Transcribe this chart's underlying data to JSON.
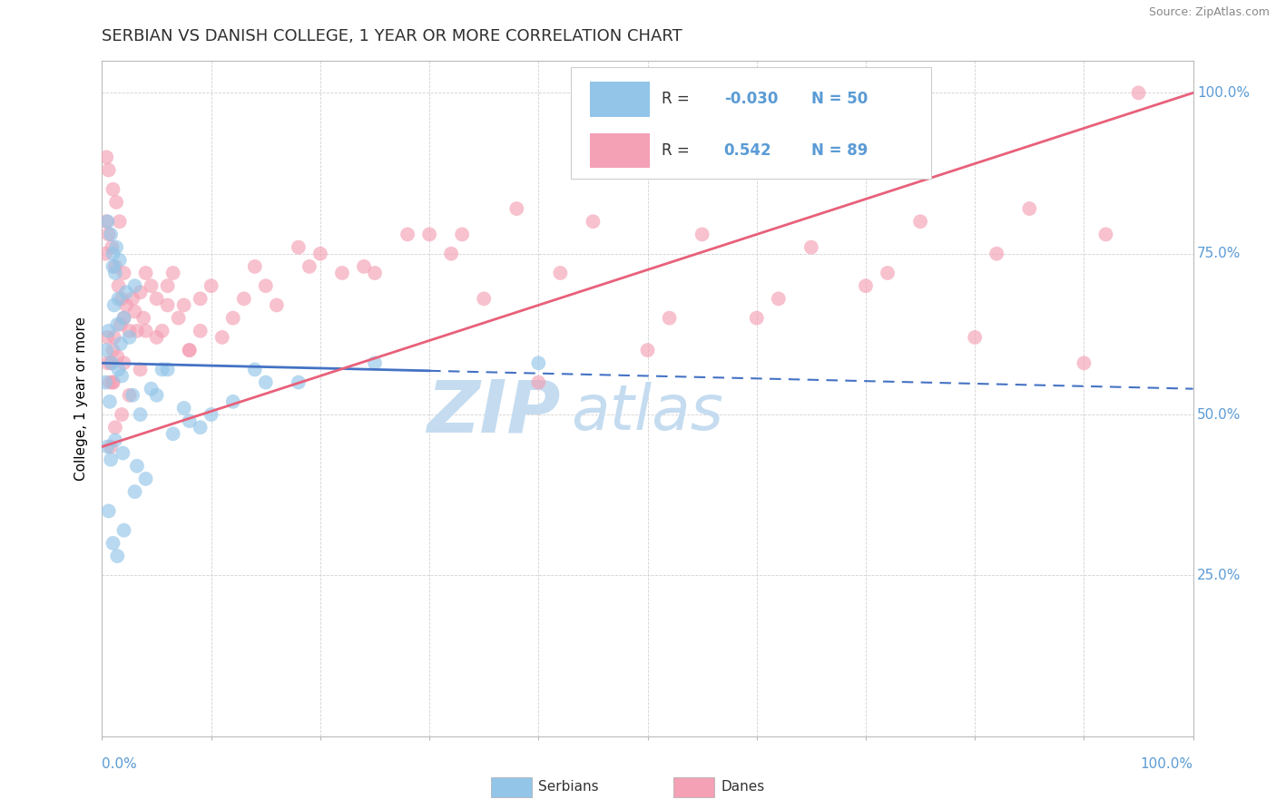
{
  "title": "SERBIAN VS DANISH COLLEGE, 1 YEAR OR MORE CORRELATION CHART",
  "source": "Source: ZipAtlas.com",
  "ylabel": "College, 1 year or more",
  "series": [
    {
      "name": "Serbians",
      "R": -0.03,
      "N": 50,
      "color": "#92C5E8",
      "x": [
        1.5,
        5.5,
        14.0,
        1.0,
        1.2,
        1.5,
        2.0,
        2.5,
        3.0,
        0.5,
        0.8,
        1.0,
        1.3,
        1.6,
        0.4,
        0.6,
        0.9,
        1.1,
        1.4,
        1.7,
        2.2,
        0.3,
        0.7,
        1.8,
        2.8,
        3.5,
        4.5,
        6.0,
        7.5,
        9.0,
        0.5,
        0.8,
        1.2,
        1.9,
        3.2,
        5.0,
        8.0,
        12.0,
        18.0,
        25.0,
        0.6,
        1.0,
        1.4,
        2.0,
        3.0,
        4.0,
        6.5,
        10.0,
        15.0,
        40.0
      ],
      "y": [
        57,
        57,
        57,
        75,
        72,
        68,
        65,
        62,
        70,
        80,
        78,
        73,
        76,
        74,
        60,
        63,
        58,
        67,
        64,
        61,
        69,
        55,
        52,
        56,
        53,
        50,
        54,
        57,
        51,
        48,
        45,
        43,
        46,
        44,
        42,
        53,
        49,
        52,
        55,
        58,
        35,
        30,
        28,
        32,
        38,
        40,
        47,
        50,
        55,
        58
      ]
    },
    {
      "name": "Danes",
      "R": 0.542,
      "N": 89,
      "color": "#F4A0B5",
      "x": [
        0.3,
        0.5,
        0.8,
        1.0,
        1.0,
        0.4,
        0.6,
        0.9,
        1.2,
        1.5,
        1.8,
        2.0,
        2.5,
        3.0,
        3.5,
        4.0,
        5.0,
        6.0,
        7.0,
        8.0,
        0.5,
        0.7,
        1.1,
        1.4,
        1.7,
        2.2,
        3.2,
        4.5,
        6.5,
        9.0,
        12.0,
        15.0,
        20.0,
        25.0,
        30.0,
        35.0,
        40.0,
        50.0,
        60.0,
        70.0,
        80.0,
        90.0,
        0.4,
        0.6,
        1.0,
        1.3,
        1.6,
        2.0,
        2.8,
        3.8,
        5.5,
        8.0,
        11.0,
        16.0,
        22.0,
        32.0,
        45.0,
        55.0,
        65.0,
        75.0,
        85.0,
        95.0,
        0.8,
        1.2,
        1.8,
        2.5,
        3.5,
        5.0,
        7.5,
        10.0,
        14.0,
        18.0,
        24.0,
        33.0,
        42.0,
        52.0,
        62.0,
        72.0,
        82.0,
        92.0,
        1.0,
        2.0,
        4.0,
        6.0,
        9.0,
        13.0,
        19.0,
        28.0,
        38.0
      ],
      "y": [
        75,
        62,
        58,
        55,
        60,
        80,
        78,
        76,
        73,
        70,
        68,
        65,
        63,
        66,
        69,
        72,
        68,
        70,
        65,
        60,
        58,
        55,
        62,
        59,
        64,
        67,
        63,
        70,
        72,
        68,
        65,
        70,
        75,
        72,
        78,
        68,
        55,
        60,
        65,
        70,
        62,
        58,
        90,
        88,
        85,
        83,
        80,
        72,
        68,
        65,
        63,
        60,
        62,
        67,
        72,
        75,
        80,
        78,
        76,
        80,
        82,
        100,
        45,
        48,
        50,
        53,
        57,
        62,
        67,
        70,
        73,
        76,
        73,
        78,
        72,
        65,
        68,
        72,
        75,
        78,
        55,
        58,
        63,
        67,
        63,
        68,
        73,
        78,
        82
      ]
    }
  ],
  "xlim": [
    0,
    100
  ],
  "ylim": [
    0,
    105
  ],
  "trend_serbian": {
    "x_start": 0,
    "x_end": 100,
    "y_start": 58,
    "y_end": 54
  },
  "trend_danes": {
    "x_start": 0,
    "x_end": 100,
    "y_start": 45,
    "y_end": 100
  },
  "watermark_zip": "ZIP",
  "watermark_atlas": "atlas",
  "background_color": "#FFFFFF",
  "grid_color": "#CCCCCC",
  "title_color": "#2F2F2F",
  "ylabel_color": "#000000",
  "tick_label_color": "#5B9BD5",
  "r_value_color": "#5B9BD5",
  "watermark_color": "#C5DCF0",
  "serbian_trend_color": "#4472C4",
  "danes_trend_color": "#E8607A"
}
